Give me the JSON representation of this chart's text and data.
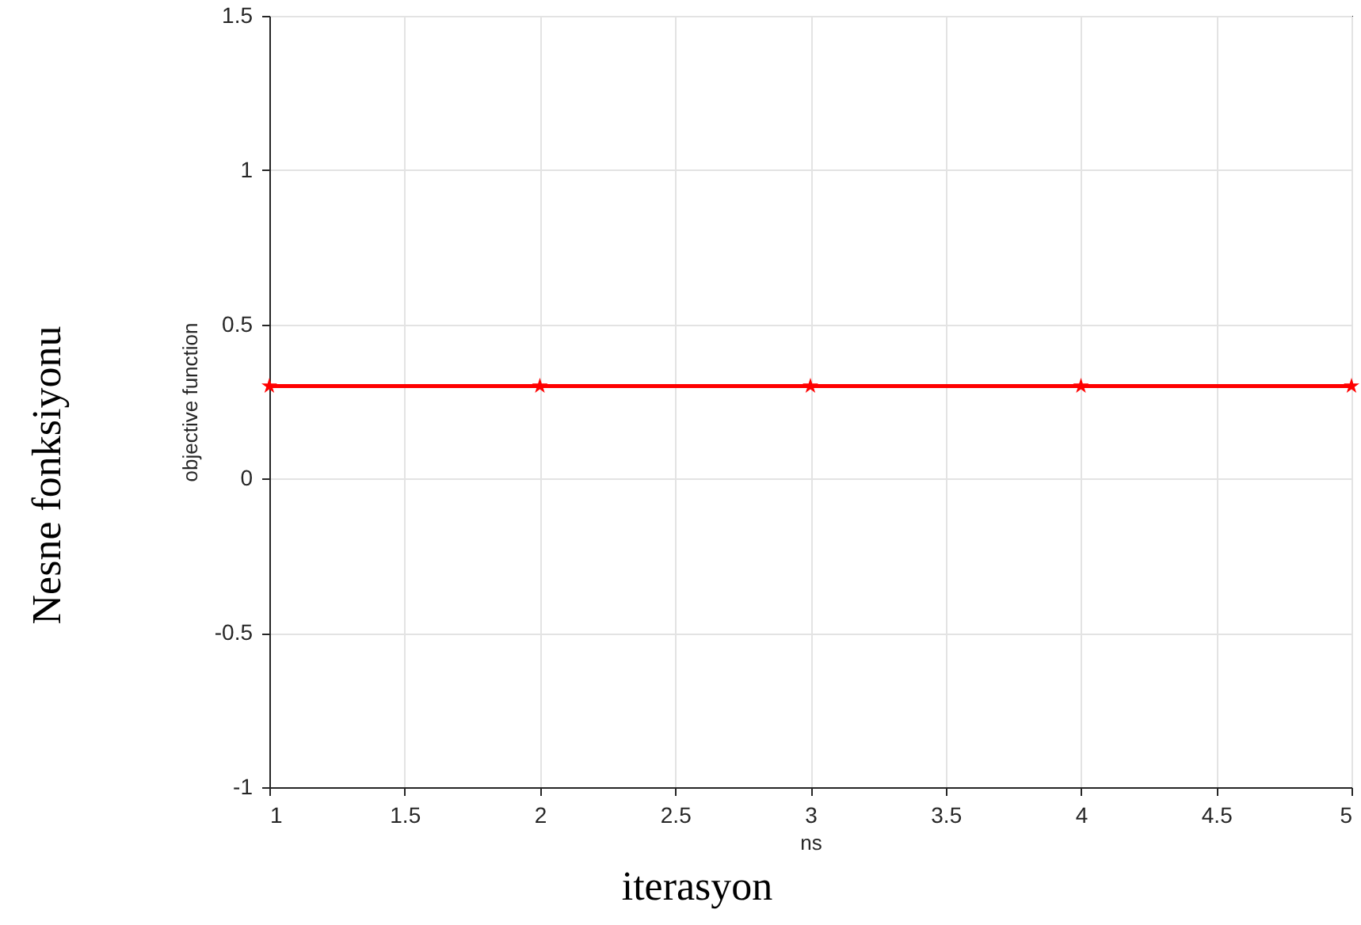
{
  "chart_data": {
    "type": "line",
    "xlabel": "ns",
    "ylabel": "objective function",
    "annotations": [
      "Nesne fonksiyonu",
      "iterasyon"
    ],
    "x": [
      1,
      2,
      3,
      4,
      5
    ],
    "series": [
      {
        "color": "#ff0000",
        "values": [
          0.3,
          0.3,
          0.3,
          0.3,
          0.3
        ]
      }
    ],
    "xlim": [
      1,
      5
    ],
    "xticks": [
      1,
      1.5,
      2,
      2.5,
      3,
      3.5,
      4,
      4.5,
      5
    ],
    "ylim": [
      -1,
      1.5
    ],
    "yticks": [
      -1,
      -0.5,
      0,
      0.5,
      1,
      1.5
    ],
    "grid": true,
    "marker": "star",
    "line_style": "solid"
  }
}
